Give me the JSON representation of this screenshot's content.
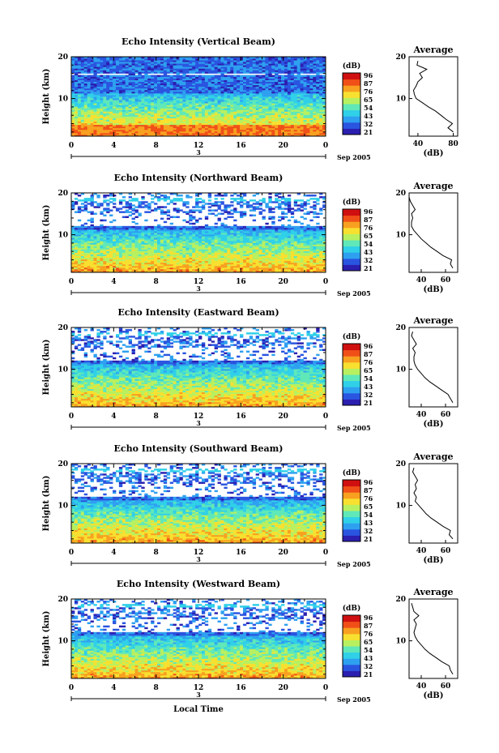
{
  "figure": {
    "xlabel": "Local Time",
    "date_label": "Sep 2005",
    "day_label": "3",
    "x_ticks": [
      "0",
      "4",
      "8",
      "12",
      "16",
      "20",
      "0"
    ],
    "y_label": "Height (km)",
    "y_ticks": [
      "10",
      "20"
    ],
    "colorbar": {
      "unit": "(dB)",
      "levels": [
        "96",
        "87",
        "76",
        "65",
        "54",
        "43",
        "32",
        "21"
      ],
      "colors": [
        "#2b1fb0",
        "#2a55e0",
        "#2ea0f0",
        "#30d0e8",
        "#60e8b8",
        "#b8f060",
        "#f8e030",
        "#f8a020",
        "#f05018",
        "#d01010"
      ]
    },
    "profile_title": "Average",
    "profile_xlabel": "(dB)"
  },
  "chart_data": [
    {
      "type": "heatmap",
      "title": "Echo Intensity (Vertical Beam)",
      "xlim": [
        0,
        24
      ],
      "ylim": [
        1,
        20
      ],
      "colorbar_levels": [
        "96",
        "87",
        "76",
        "65",
        "54",
        "43",
        "32",
        "21"
      ],
      "profile": {
        "title": "Average",
        "xticks": [
          "40",
          "80"
        ],
        "xlim": [
          30,
          85
        ],
        "height_km": [
          2,
          3,
          4,
          5,
          6,
          7,
          8,
          9,
          10,
          11,
          12,
          13,
          14,
          15,
          16,
          17,
          18,
          19
        ],
        "db": [
          80,
          74,
          79,
          72,
          66,
          60,
          52,
          45,
          38,
          36,
          35,
          38,
          40,
          45,
          42,
          50,
          39,
          40
        ]
      }
    },
    {
      "type": "heatmap",
      "title": "Echo Intensity (Northward Beam)",
      "xlim": [
        0,
        24
      ],
      "ylim": [
        1,
        20
      ],
      "colorbar_levels": [
        "96",
        "87",
        "76",
        "65",
        "54",
        "43",
        "32",
        "21"
      ],
      "profile": {
        "title": "Average",
        "xticks": [
          "40",
          "60"
        ],
        "xlim": [
          30,
          70
        ],
        "height_km": [
          2,
          3,
          4,
          5,
          6,
          7,
          8,
          9,
          10,
          11,
          12,
          13,
          14,
          15,
          16,
          17,
          18,
          19
        ],
        "db": [
          66,
          64,
          65,
          58,
          53,
          48,
          44,
          40,
          37,
          34,
          32,
          32,
          33,
          32,
          35,
          33,
          31,
          30
        ]
      }
    },
    {
      "type": "heatmap",
      "title": "Echo Intensity (Eastward Beam)",
      "xlim": [
        0,
        24
      ],
      "ylim": [
        1,
        20
      ],
      "colorbar_levels": [
        "96",
        "87",
        "76",
        "65",
        "54",
        "43",
        "32",
        "21"
      ],
      "profile": {
        "title": "Average",
        "xticks": [
          "40",
          "60"
        ],
        "xlim": [
          30,
          70
        ],
        "height_km": [
          2,
          3,
          4,
          5,
          6,
          7,
          8,
          9,
          10,
          11,
          12,
          13,
          14,
          15,
          16,
          17,
          18,
          19
        ],
        "db": [
          66,
          64,
          62,
          57,
          52,
          47,
          43,
          40,
          37,
          35,
          34,
          34,
          35,
          33,
          36,
          34,
          32,
          33
        ]
      }
    },
    {
      "type": "heatmap",
      "title": "Echo Intensity (Southward Beam)",
      "xlim": [
        0,
        24
      ],
      "ylim": [
        1,
        20
      ],
      "colorbar_levels": [
        "96",
        "87",
        "76",
        "65",
        "54",
        "43",
        "32",
        "21"
      ],
      "profile": {
        "title": "Average",
        "xticks": [
          "40",
          "60"
        ],
        "xlim": [
          30,
          70
        ],
        "height_km": [
          2,
          3,
          4,
          5,
          6,
          7,
          8,
          9,
          10,
          11,
          12,
          13,
          14,
          15,
          16,
          17,
          18,
          19
        ],
        "db": [
          66,
          63,
          64,
          58,
          53,
          48,
          44,
          41,
          38,
          35,
          36,
          34,
          36,
          35,
          37,
          35,
          33,
          34
        ]
      }
    },
    {
      "type": "heatmap",
      "title": "Echo Intensity (Westward Beam)",
      "xlim": [
        0,
        24
      ],
      "ylim": [
        1,
        20
      ],
      "colorbar_levels": [
        "96",
        "87",
        "76",
        "65",
        "54",
        "43",
        "32",
        "21"
      ],
      "profile": {
        "title": "Average",
        "xticks": [
          "40",
          "60"
        ],
        "xlim": [
          30,
          70
        ],
        "height_km": [
          2,
          3,
          4,
          5,
          6,
          7,
          8,
          9,
          10,
          11,
          12,
          13,
          14,
          15,
          16,
          17,
          18,
          19
        ],
        "db": [
          66,
          64,
          63,
          57,
          52,
          47,
          43,
          40,
          37,
          35,
          34,
          35,
          36,
          34,
          38,
          34,
          33,
          32
        ]
      }
    }
  ]
}
